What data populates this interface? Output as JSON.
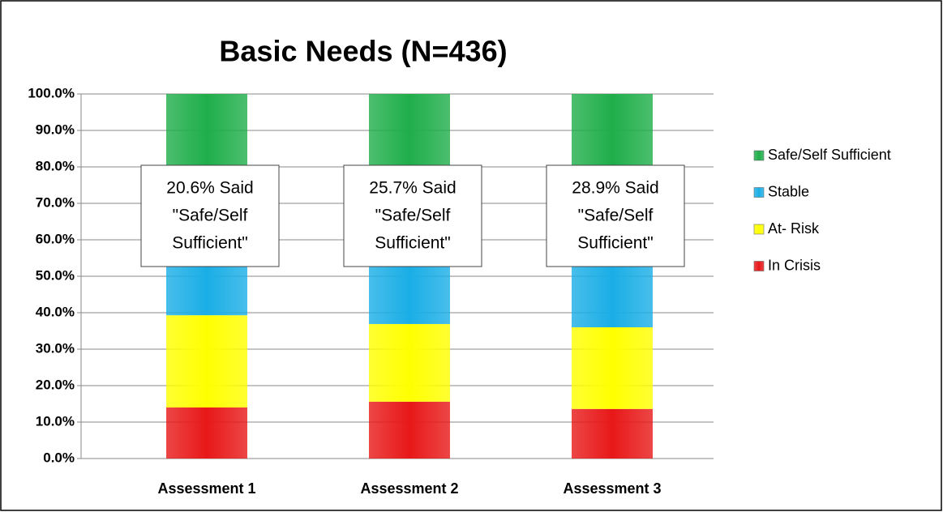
{
  "chart_data": {
    "type": "stacked_bar",
    "title": "Basic Needs (N=436)",
    "categories": [
      "Assessment 1",
      "Assessment 2",
      "Assessment 3"
    ],
    "series": [
      {
        "name": "In Crisis",
        "color": "#e81818",
        "values": [
          14.0,
          15.6,
          13.6
        ]
      },
      {
        "name": "At- Risk",
        "color": "#ffff00",
        "values": [
          25.3,
          21.3,
          22.4
        ]
      },
      {
        "name": "Stable",
        "color": "#1aaee6",
        "values": [
          40.1,
          37.4,
          35.1
        ]
      },
      {
        "name": "Safe/Self Sufficient",
        "color": "#1fae4a",
        "values": [
          20.6,
          25.7,
          28.9
        ]
      }
    ],
    "ylim": [
      0,
      100
    ],
    "yticks": [
      {
        "value": 0,
        "label": "0.0%"
      },
      {
        "value": 10,
        "label": "10.0%"
      },
      {
        "value": 20,
        "label": "20.0%"
      },
      {
        "value": 30,
        "label": "30.0%"
      },
      {
        "value": 40,
        "label": "40.0%"
      },
      {
        "value": 50,
        "label": "50.0%"
      },
      {
        "value": 60,
        "label": "60.0%"
      },
      {
        "value": 70,
        "label": "70.0%"
      },
      {
        "value": 80,
        "label": "80.0%"
      },
      {
        "value": 90,
        "label": "90.0%"
      },
      {
        "value": 100,
        "label": "100.0%"
      }
    ],
    "grid": true,
    "legend": "right",
    "annotations": [
      {
        "lines": [
          "20.6% Said",
          "\"Safe/Self",
          "Sufficient\""
        ]
      },
      {
        "lines": [
          "25.7% Said",
          "\"Safe/Self",
          "Sufficient\""
        ]
      },
      {
        "lines": [
          "28.9% Said",
          "\"Safe/Self",
          "Sufficient\""
        ]
      }
    ]
  }
}
